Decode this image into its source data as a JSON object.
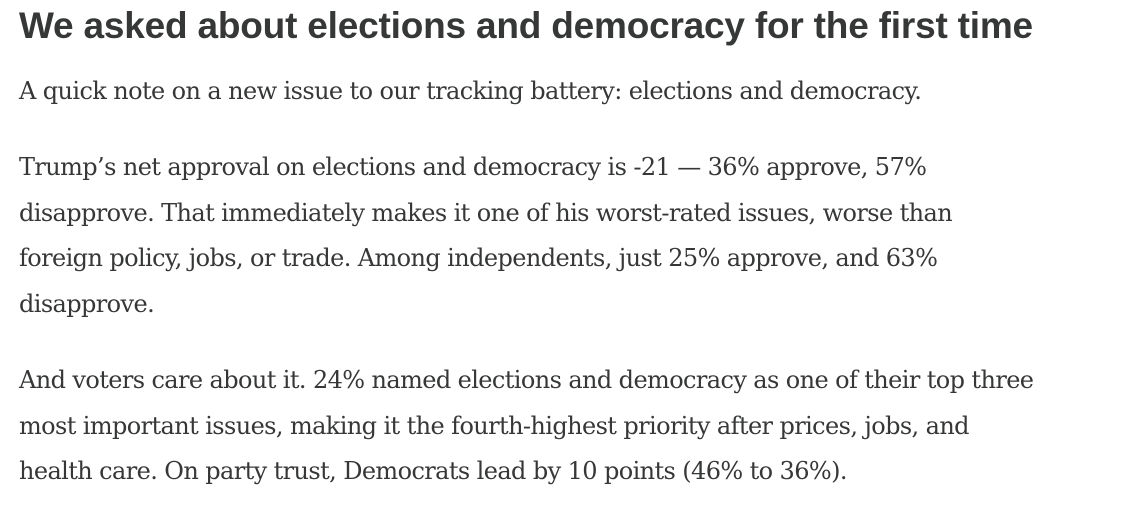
{
  "article": {
    "heading": "We asked about elections and democracy for the first time",
    "paragraphs": [
      {
        "lines": [
          "A quick note on a new issue to our tracking battery: elections and democracy."
        ]
      },
      {
        "lines": [
          "Trump’s net approval on elections and democracy is -21 — 36% approve, 57%",
          "disapprove. That immediately makes it one of his worst-rated issues, worse than",
          "foreign policy, jobs, or trade. Among independents, just 25% approve, and 63%",
          "disapprove."
        ]
      },
      {
        "lines": [
          "And voters care about it. 24% named elections and democracy as one of their top three",
          "most important issues, making it the fourth-highest priority after prices, jobs, and",
          "health care. On party trust, Democrats lead by 10 points (46% to 36%)."
        ]
      }
    ]
  },
  "colors": {
    "text": "#363737",
    "background": "#ffffff"
  }
}
